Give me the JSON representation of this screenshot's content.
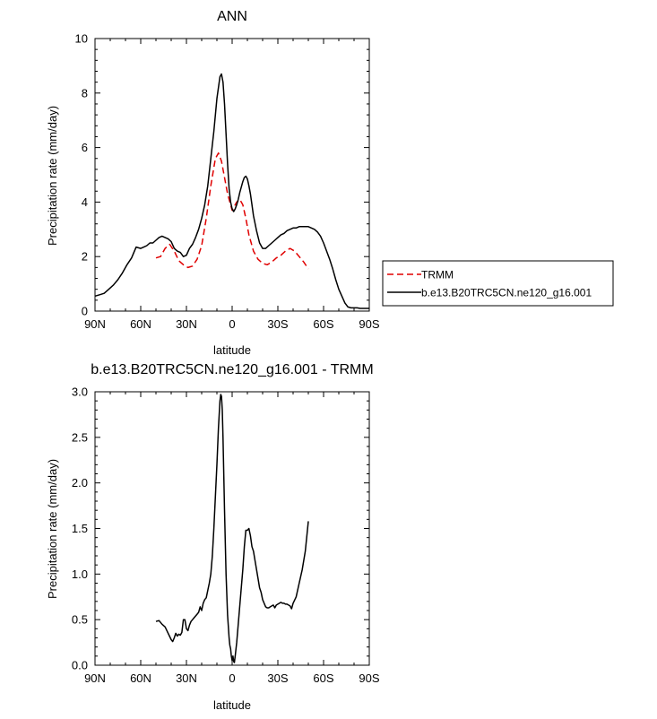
{
  "chart_data": [
    {
      "type": "line",
      "title": "ANN",
      "xlabel": "latitude",
      "ylabel": "Precipitation rate (mm/day)",
      "xlim": [
        90,
        -90
      ],
      "ylim": [
        0,
        10
      ],
      "xticks": [
        90,
        60,
        30,
        0,
        -30,
        -60,
        -90
      ],
      "xtick_labels": [
        "90N",
        "60N",
        "30N",
        "0",
        "30S",
        "60S",
        "90S"
      ],
      "yticks": [
        0,
        2,
        4,
        6,
        8,
        10
      ],
      "ytick_labels": [
        "0",
        "2",
        "4",
        "6",
        "8",
        "10"
      ],
      "legend": "right",
      "series": [
        {
          "name": "TRMM",
          "color": "#e00000",
          "dash": "dashed",
          "x": [
            50,
            47,
            44,
            41,
            38,
            35,
            32,
            29,
            26,
            23,
            20,
            17,
            14,
            11,
            9,
            7,
            5,
            3,
            1,
            0,
            -1,
            -3,
            -5,
            -7,
            -9,
            -11,
            -14,
            -17,
            -20,
            -23,
            -26,
            -29,
            -32,
            -35,
            -38,
            -41,
            -44,
            -47,
            -50
          ],
          "y": [
            1.95,
            2.0,
            2.3,
            2.45,
            2.2,
            1.85,
            1.7,
            1.6,
            1.65,
            1.9,
            2.4,
            3.4,
            4.6,
            5.6,
            5.8,
            5.5,
            4.9,
            4.3,
            3.9,
            3.7,
            3.8,
            4.0,
            4.1,
            3.9,
            3.4,
            2.8,
            2.2,
            1.9,
            1.75,
            1.7,
            1.8,
            1.95,
            2.05,
            2.2,
            2.3,
            2.2,
            2.0,
            1.8,
            1.55
          ]
        },
        {
          "name": "b.e13.B20TRC5CN.ne120_g16.001",
          "color": "#000000",
          "dash": "solid",
          "x": [
            90,
            87,
            84,
            81,
            78,
            75,
            72,
            69,
            66,
            63,
            60,
            58,
            56,
            54,
            52,
            50,
            48,
            46,
            44,
            42,
            40,
            38,
            36,
            34,
            32,
            30,
            28,
            26,
            24,
            22,
            20,
            18,
            16,
            14,
            12,
            10,
            8,
            7,
            6,
            5,
            4,
            3,
            2,
            1,
            0,
            -1,
            -2,
            -3,
            -4,
            -5,
            -6,
            -7,
            -8,
            -9,
            -10,
            -11,
            -12,
            -13,
            -14,
            -16,
            -18,
            -20,
            -22,
            -24,
            -26,
            -28,
            -30,
            -32,
            -34,
            -36,
            -38,
            -40,
            -42,
            -44,
            -46,
            -48,
            -50,
            -52,
            -54,
            -56,
            -58,
            -60,
            -62,
            -64,
            -66,
            -68,
            -70,
            -72,
            -74,
            -76,
            -78,
            -80,
            -82,
            -84,
            -86,
            -88,
            -90
          ],
          "y": [
            0.55,
            0.6,
            0.65,
            0.8,
            0.95,
            1.15,
            1.4,
            1.7,
            1.95,
            2.35,
            2.3,
            2.35,
            2.4,
            2.5,
            2.5,
            2.6,
            2.7,
            2.75,
            2.7,
            2.65,
            2.55,
            2.3,
            2.2,
            2.15,
            2.0,
            2.05,
            2.3,
            2.45,
            2.7,
            3.0,
            3.4,
            3.9,
            4.6,
            5.6,
            6.6,
            7.8,
            8.6,
            8.7,
            8.4,
            7.6,
            6.5,
            5.4,
            4.5,
            4.0,
            3.75,
            3.65,
            3.75,
            3.9,
            4.1,
            4.35,
            4.55,
            4.75,
            4.9,
            4.95,
            4.85,
            4.6,
            4.3,
            3.9,
            3.5,
            2.95,
            2.5,
            2.3,
            2.3,
            2.4,
            2.5,
            2.6,
            2.7,
            2.8,
            2.85,
            2.95,
            3.0,
            3.05,
            3.05,
            3.1,
            3.1,
            3.1,
            3.1,
            3.05,
            3.0,
            2.9,
            2.75,
            2.5,
            2.2,
            1.9,
            1.55,
            1.15,
            0.8,
            0.55,
            0.3,
            0.15,
            0.12,
            0.12,
            0.12,
            0.1,
            0.1,
            0.1,
            0.1
          ]
        }
      ]
    },
    {
      "type": "line",
      "title": "b.e13.B20TRC5CN.ne120_g16.001 - TRMM",
      "xlabel": "latitude",
      "ylabel": "Precipitation rate (mm/day)",
      "xlim": [
        90,
        -90
      ],
      "ylim": [
        0,
        3
      ],
      "xticks": [
        90,
        60,
        30,
        0,
        -30,
        -60,
        -90
      ],
      "xtick_labels": [
        "90N",
        "60N",
        "30N",
        "0",
        "30S",
        "60S",
        "90S"
      ],
      "yticks": [
        0,
        0.5,
        1,
        1.5,
        2,
        2.5,
        3
      ],
      "ytick_labels": [
        "0.0",
        "0.5",
        "1.0",
        "1.5",
        "2.0",
        "2.5",
        "3.0"
      ],
      "series": [
        {
          "color": "#000000",
          "dash": "solid",
          "x": [
            50,
            48,
            46,
            44,
            42,
            40,
            39,
            38,
            37,
            36,
            35,
            34,
            33,
            32,
            31,
            30,
            29,
            28,
            27,
            26,
            25,
            24,
            23,
            22,
            21,
            20,
            19,
            18,
            17,
            16,
            15,
            14,
            13,
            12,
            11,
            10,
            9,
            8,
            7.5,
            7,
            6.5,
            6,
            5,
            4,
            3,
            2,
            1.5,
            1,
            0.5,
            0,
            -0.5,
            -1,
            -1.5,
            -2,
            -3,
            -4,
            -5,
            -6,
            -7,
            -8,
            -9,
            -10,
            -11,
            -12,
            -13,
            -14,
            -15,
            -16,
            -17,
            -18,
            -19,
            -20,
            -21,
            -22,
            -23,
            -24,
            -25,
            -26,
            -27,
            -28,
            -29,
            -30,
            -31,
            -32,
            -33,
            -34,
            -35,
            -36,
            -37,
            -38,
            -39,
            -40,
            -42,
            -44,
            -46,
            -48,
            -50
          ],
          "y": [
            0.48,
            0.49,
            0.45,
            0.42,
            0.35,
            0.28,
            0.26,
            0.3,
            0.35,
            0.32,
            0.34,
            0.33,
            0.36,
            0.5,
            0.5,
            0.4,
            0.38,
            0.44,
            0.48,
            0.5,
            0.52,
            0.54,
            0.56,
            0.58,
            0.64,
            0.6,
            0.68,
            0.72,
            0.74,
            0.82,
            0.9,
            1.0,
            1.2,
            1.5,
            1.85,
            2.2,
            2.6,
            2.9,
            2.97,
            2.95,
            2.8,
            2.5,
            1.7,
            1.0,
            0.55,
            0.3,
            0.22,
            0.18,
            0.1,
            0.05,
            0.1,
            0.04,
            0.03,
            0.1,
            0.25,
            0.45,
            0.65,
            0.85,
            1.05,
            1.3,
            1.48,
            1.48,
            1.5,
            1.42,
            1.3,
            1.25,
            1.15,
            1.05,
            0.95,
            0.85,
            0.8,
            0.72,
            0.68,
            0.64,
            0.63,
            0.63,
            0.64,
            0.65,
            0.66,
            0.63,
            0.66,
            0.67,
            0.68,
            0.69,
            0.68,
            0.68,
            0.67,
            0.67,
            0.66,
            0.65,
            0.62,
            0.68,
            0.75,
            0.9,
            1.05,
            1.25,
            1.58
          ]
        }
      ]
    }
  ]
}
